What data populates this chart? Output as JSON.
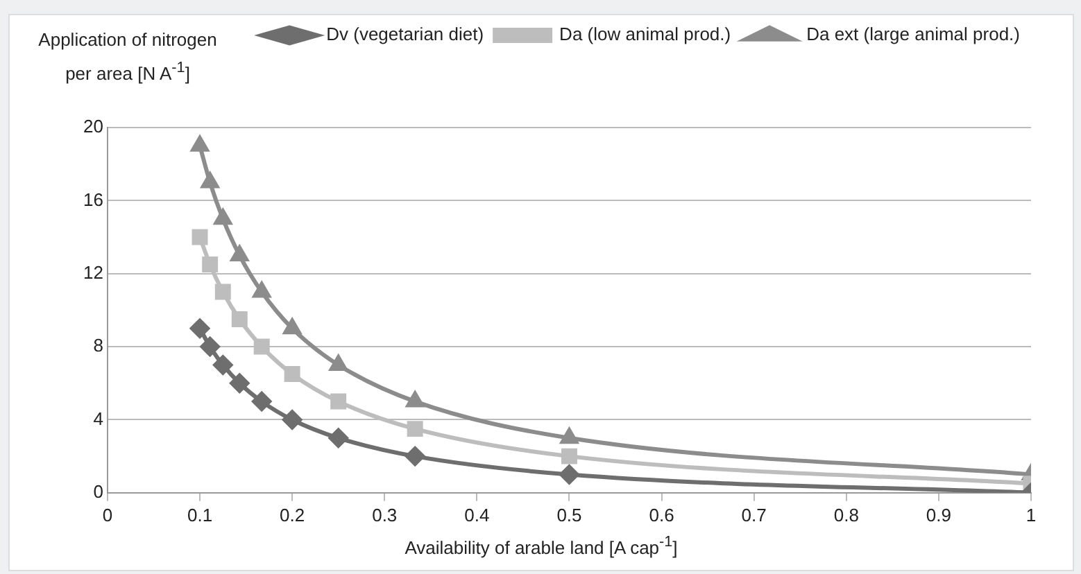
{
  "chart_data": {
    "type": "line",
    "xlabel": "Availability of arable land [A cap$^{-1}$]",
    "ylabel": "Application of nitrogen per area [N A$^{-1}$]",
    "x": [
      0.1,
      0.111,
      0.125,
      0.143,
      0.167,
      0.2,
      0.25,
      0.333,
      0.5,
      1
    ],
    "xlim": [
      0,
      1
    ],
    "xticks": [
      0,
      0.1,
      0.2,
      0.3,
      0.4,
      0.5,
      0.6,
      0.7,
      0.8,
      0.9,
      1
    ],
    "ylim": [
      0,
      20
    ],
    "yticks": [
      0,
      4,
      8,
      12,
      16,
      20
    ],
    "grid": "y",
    "legend": "top right",
    "line_style": "solid",
    "series": [
      {
        "name": "Dv (vegetarian diet)",
        "color": "#6e6e6e",
        "marker": "diamond",
        "values": [
          9,
          8,
          7,
          6,
          5,
          4,
          3,
          2,
          1,
          0
        ]
      },
      {
        "name": "Da (low animal prod.)",
        "color": "#bdbdbd",
        "marker": "square",
        "values": [
          14,
          12.5,
          11,
          9.5,
          8,
          6.5,
          5,
          3.5,
          2,
          0.5
        ]
      },
      {
        "name": "Da ext (large animal prod.)",
        "color": "#8c8c8c",
        "marker": "triangle",
        "values": [
          19,
          17,
          15,
          13,
          11,
          9,
          7,
          5,
          3,
          1
        ]
      }
    ]
  }
}
